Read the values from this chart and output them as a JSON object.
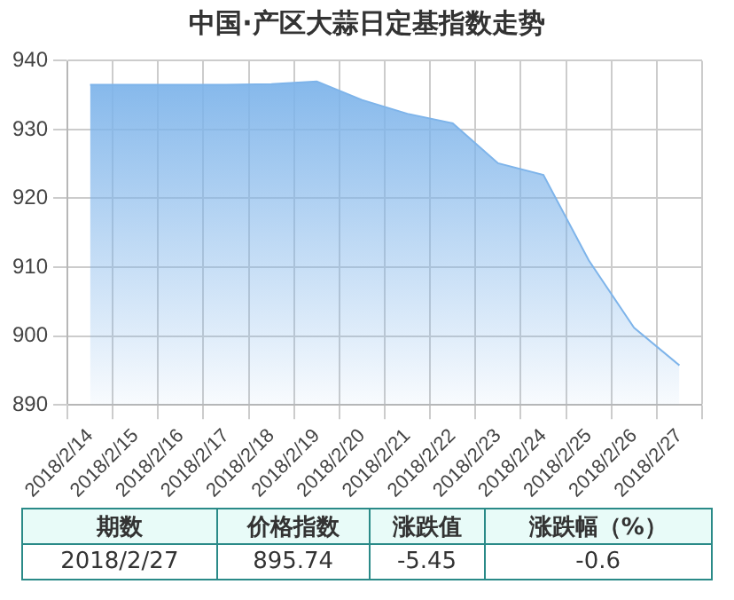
{
  "chart_data": {
    "type": "area",
    "title": "中国·产区大蒜日定基指数走势",
    "categories": [
      "2018/2/14",
      "2018/2/15",
      "2018/2/16",
      "2018/2/17",
      "2018/2/18",
      "2018/2/19",
      "2018/2/20",
      "2018/2/21",
      "2018/2/22",
      "2018/2/23",
      "2018/2/24",
      "2018/2/25",
      "2018/2/26",
      "2018/2/27"
    ],
    "series": [
      {
        "color": "#7eb4ea",
        "values": [
          936.5,
          936.5,
          936.5,
          936.5,
          936.6,
          937.0,
          934.3,
          932.3,
          930.9,
          925.1,
          923.4,
          911.0,
          901.2,
          895.74
        ]
      }
    ],
    "ylim": [
      890,
      940
    ],
    "yticks": [
      890,
      900,
      910,
      920,
      930,
      940
    ],
    "grid": true,
    "legend": false,
    "annotations": [
      "期数",
      "价格指数",
      "涨跌值",
      "涨跌幅（%）",
      "2018/2/27",
      "895.74",
      "-5.45",
      "-0.6"
    ]
  }
}
